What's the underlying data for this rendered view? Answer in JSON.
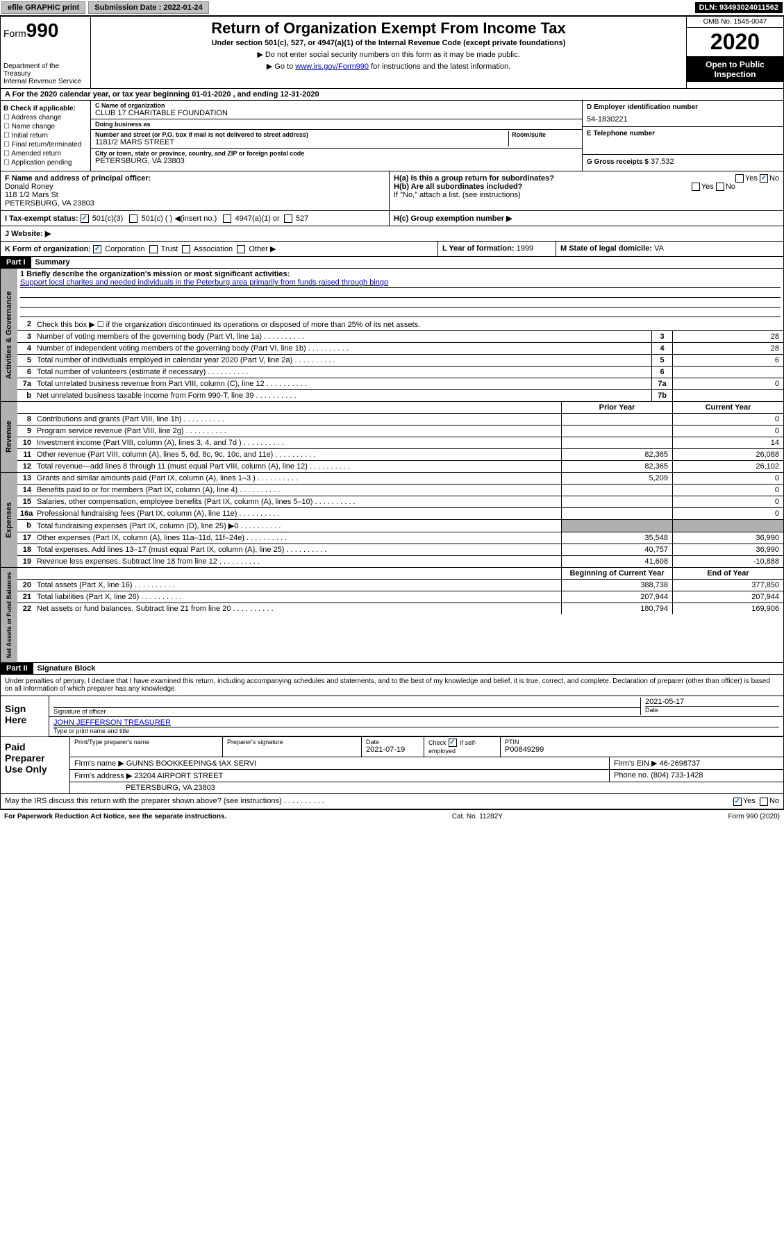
{
  "topbar": {
    "efile": "efile GRAPHIC print",
    "submission_label": "Submission Date :",
    "submission_date": "2022-01-24",
    "dln_label": "DLN:",
    "dln": "93493024011562"
  },
  "header": {
    "form_label": "Form",
    "form_num": "990",
    "dept": "Department of the Treasury\nInternal Revenue Service",
    "title": "Return of Organization Exempt From Income Tax",
    "subtitle": "Under section 501(c), 527, or 4947(a)(1) of the Internal Revenue Code (except private foundations)",
    "note1": "▶ Do not enter social security numbers on this form as it may be made public.",
    "note2_pre": "▶ Go to ",
    "note2_link": "www.irs.gov/Form990",
    "note2_post": " for instructions and the latest information.",
    "omb": "OMB No. 1545-0047",
    "year": "2020",
    "open": "Open to Public Inspection"
  },
  "line_a": "A   For the 2020 calendar year, or tax year beginning 01-01-2020    , and ending 12-31-2020",
  "section_b": {
    "label": "B Check if applicable:",
    "items": [
      "☐ Address change",
      "☐ Name change",
      "☐ Initial return",
      "☐ Final return/terminated",
      "☐ Amended return",
      "☐ Application pending"
    ]
  },
  "section_c": {
    "name_lbl": "C Name of organization",
    "name": "CLUB 17 CHARITABLE FOUNDATION",
    "dba_lbl": "Doing business as",
    "dba": "",
    "street_lbl": "Number and street (or P.O. box if mail is not delivered to street address)",
    "street": "1181/2 MARS STREET",
    "room_lbl": "Room/suite",
    "city_lbl": "City or town, state or province, country, and ZIP or foreign postal code",
    "city": "PETERSBURG, VA  23803"
  },
  "section_d": {
    "lbl": "D Employer identification number",
    "val": "54-1830221"
  },
  "section_e": {
    "lbl": "E Telephone number",
    "val": ""
  },
  "section_g": {
    "lbl": "G Gross receipts $",
    "val": "37,532"
  },
  "section_f": {
    "lbl": "F  Name and address of principal officer:",
    "name": "Donald Roney",
    "addr1": "118 1/2 Mars St",
    "addr2": "PETERSBURG, VA  23803"
  },
  "section_h": {
    "ha": "H(a)  Is this a group return for subordinates?",
    "ha_yes": "Yes",
    "ha_no": "No",
    "hb": "H(b)  Are all subordinates included?",
    "hb_yes": "Yes",
    "hb_no": "No",
    "hb_note": "If \"No,\" attach a list. (see instructions)",
    "hc": "H(c)  Group exemption number ▶"
  },
  "section_i": {
    "lbl": "I    Tax-exempt status:",
    "opt1": "501(c)(3)",
    "opt2": "501(c) (  ) ◀(insert no.)",
    "opt3": "4947(a)(1) or",
    "opt4": "527"
  },
  "section_j": {
    "lbl": "J    Website: ▶"
  },
  "section_k": {
    "lbl": "K Form of organization:",
    "opts": [
      "Corporation",
      "Trust",
      "Association",
      "Other ▶"
    ]
  },
  "section_l": {
    "lbl": "L Year of formation:",
    "val": "1999"
  },
  "section_m": {
    "lbl": "M State of legal domicile:",
    "val": "VA"
  },
  "part1": {
    "hdr": "Part I",
    "title": "Summary"
  },
  "summary": {
    "q1_lbl": "1  Briefly describe the organization's mission or most significant activities:",
    "q1_txt": "Support locsl charites and needed individuals in the Peterburg area primarily from funds raised through bingo",
    "q2": "Check this box ▶ ☐  if the organization discontinued its operations or disposed of more than 25% of its net assets.",
    "rows_gov": [
      {
        "n": "3",
        "t": "Number of voting members of the governing body (Part VI, line 1a)",
        "b": "3",
        "v": "28"
      },
      {
        "n": "4",
        "t": "Number of independent voting members of the governing body (Part VI, line 1b)",
        "b": "4",
        "v": "28"
      },
      {
        "n": "5",
        "t": "Total number of individuals employed in calendar year 2020 (Part V, line 2a)",
        "b": "5",
        "v": "6"
      },
      {
        "n": "6",
        "t": "Total number of volunteers (estimate if necessary)",
        "b": "6",
        "v": ""
      },
      {
        "n": "7a",
        "t": "Total unrelated business revenue from Part VIII, column (C), line 12",
        "b": "7a",
        "v": "0"
      },
      {
        "n": "b",
        "t": "Net unrelated business taxable income from Form 990-T, line 39",
        "b": "7b",
        "v": ""
      }
    ],
    "col_hdrs": {
      "prior": "Prior Year",
      "current": "Current Year"
    },
    "rows_rev": [
      {
        "n": "8",
        "t": "Contributions and grants (Part VIII, line 1h)",
        "p": "",
        "c": "0"
      },
      {
        "n": "9",
        "t": "Program service revenue (Part VIII, line 2g)",
        "p": "",
        "c": "0"
      },
      {
        "n": "10",
        "t": "Investment income (Part VIII, column (A), lines 3, 4, and 7d )",
        "p": "",
        "c": "14"
      },
      {
        "n": "11",
        "t": "Other revenue (Part VIII, column (A), lines 5, 6d, 8c, 9c, 10c, and 11e)",
        "p": "82,365",
        "c": "26,088"
      },
      {
        "n": "12",
        "t": "Total revenue—add lines 8 through 11 (must equal Part VIII, column (A), line 12)",
        "p": "82,365",
        "c": "26,102"
      }
    ],
    "rows_exp": [
      {
        "n": "13",
        "t": "Grants and similar amounts paid (Part IX, column (A), lines 1–3 )",
        "p": "5,209",
        "c": "0"
      },
      {
        "n": "14",
        "t": "Benefits paid to or for members (Part IX, column (A), line 4)",
        "p": "",
        "c": "0"
      },
      {
        "n": "15",
        "t": "Salaries, other compensation, employee benefits (Part IX, column (A), lines 5–10)",
        "p": "",
        "c": "0"
      },
      {
        "n": "16a",
        "t": "Professional fundraising fees (Part IX, column (A), line 11e)",
        "p": "",
        "c": "0"
      },
      {
        "n": "b",
        "t": "Total fundraising expenses (Part IX, column (D), line 25) ▶0",
        "p": "shade",
        "c": "shade"
      },
      {
        "n": "17",
        "t": "Other expenses (Part IX, column (A), lines 11a–11d, 11f–24e)",
        "p": "35,548",
        "c": "36,990"
      },
      {
        "n": "18",
        "t": "Total expenses. Add lines 13–17 (must equal Part IX, column (A), line 25)",
        "p": "40,757",
        "c": "36,990"
      },
      {
        "n": "19",
        "t": "Revenue less expenses. Subtract line 18 from line 12",
        "p": "41,608",
        "c": "-10,888"
      }
    ],
    "col_hdrs2": {
      "begin": "Beginning of Current Year",
      "end": "End of Year"
    },
    "rows_net": [
      {
        "n": "20",
        "t": "Total assets (Part X, line 16)",
        "p": "388,738",
        "c": "377,850"
      },
      {
        "n": "21",
        "t": "Total liabilities (Part X, line 26)",
        "p": "207,944",
        "c": "207,944"
      },
      {
        "n": "22",
        "t": "Net assets or fund balances. Subtract line 21 from line 20",
        "p": "180,794",
        "c": "169,906"
      }
    ]
  },
  "vtabs": {
    "gov": "Activities & Governance",
    "rev": "Revenue",
    "exp": "Expenses",
    "net": "Net Assets or Fund Balances"
  },
  "part2": {
    "hdr": "Part II",
    "title": "Signature Block"
  },
  "sig_text": "Under penalties of perjury, I declare that I have examined this return, including accompanying schedules and statements, and to the best of my knowledge and belief, it is true, correct, and complete. Declaration of preparer (other than officer) is based on all information of which preparer has any knowledge.",
  "sign": {
    "lbl": "Sign Here",
    "sig_lbl": "Signature of officer",
    "date_lbl": "Date",
    "date": "2021-05-17",
    "name": "JOHN JEFFERSON  TREASURER",
    "name_lbl": "Type or print name and title"
  },
  "prep": {
    "lbl": "Paid Preparer Use Only",
    "h1": "Print/Type preparer's name",
    "h2": "Preparer's signature",
    "h3_lbl": "Date",
    "h3": "2021-07-19",
    "h4_lbl": "Check",
    "h4_txt": "if self-employed",
    "h5_lbl": "PTIN",
    "h5": "P00849299",
    "firm_name_lbl": "Firm's name    ▶",
    "firm_name": "GUNNS BOOKKEEPING& tAX SERVI",
    "firm_ein_lbl": "Firm's EIN ▶",
    "firm_ein": "46-2698737",
    "firm_addr_lbl": "Firm's address ▶",
    "firm_addr1": "23204 AIRPORT STREET",
    "firm_addr2": "PETERSBURG, VA  23803",
    "phone_lbl": "Phone no.",
    "phone": "(804) 733-1428"
  },
  "discuss": {
    "txt": "May the IRS discuss this return with the preparer shown above? (see instructions)",
    "yes": "Yes",
    "no": "No"
  },
  "footer": {
    "left": "For Paperwork Reduction Act Notice, see the separate instructions.",
    "mid": "Cat. No. 11282Y",
    "right": "Form 990 (2020)"
  }
}
